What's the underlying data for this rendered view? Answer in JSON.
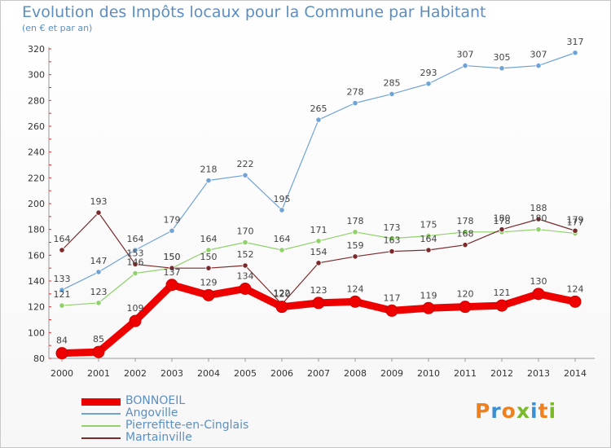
{
  "title": "Evolution des Impôts locaux pour la Commune par Habitant",
  "subtitle": "(en € et par an)",
  "logo": {
    "text": "Proxiti",
    "letter_colors": [
      "#f07f1e",
      "#3c8fd0",
      "#f07f1e",
      "#79b92b",
      "#3c8fd0",
      "#f07f1e",
      "#79b92b"
    ]
  },
  "chart_data": {
    "type": "line",
    "title": "Evolution des Impôts locaux pour la Commune par Habitant",
    "subtitle": "(en € et par an)",
    "x": [
      "2000",
      "2001",
      "2002",
      "2003",
      "2004",
      "2005",
      "2006",
      "2007",
      "2008",
      "2009",
      "2010",
      "2011",
      "2012",
      "2013",
      "2014"
    ],
    "yticks": [
      "80",
      "100",
      "120",
      "140",
      "160",
      "180",
      "200",
      "220",
      "240",
      "260",
      "280",
      "300",
      "320"
    ],
    "ylim": [
      80,
      320
    ],
    "ystep": 20,
    "grid": false,
    "legend_position": "bottom-left",
    "series": [
      {
        "name": "BONNOEIL",
        "color": "#ee0000",
        "values": [
          84,
          85,
          109,
          137,
          129,
          134,
          120,
          123,
          124,
          117,
          119,
          120,
          121,
          130,
          124
        ]
      },
      {
        "name": "Angoville",
        "color": "#6fa3d6",
        "values": [
          133,
          147,
          164,
          179,
          218,
          222,
          195,
          265,
          278,
          285,
          293,
          307,
          305,
          307,
          317
        ]
      },
      {
        "name": "Pierrefitte-en-Cinglais",
        "color": "#90d16a",
        "values": [
          121,
          123,
          146,
          150,
          164,
          170,
          164,
          171,
          178,
          173,
          175,
          178,
          178,
          180,
          177
        ]
      },
      {
        "name": "Martainville",
        "color": "#7a2a2a",
        "values": [
          164,
          193,
          153,
          150,
          150,
          152,
          122,
          154,
          159,
          163,
          164,
          168,
          180,
          188,
          179
        ]
      }
    ]
  }
}
